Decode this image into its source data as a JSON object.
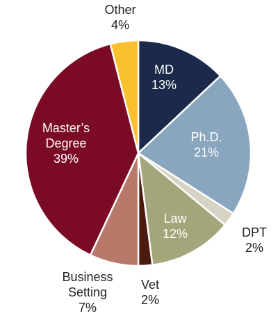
{
  "chart_data": {
    "type": "pie",
    "title": "",
    "start_angle_deg": 0,
    "direction": "clockwise",
    "slices": [
      {
        "label": "MD",
        "value": 13,
        "display": "13%",
        "color": "#1b2a4a"
      },
      {
        "label": "Ph.D.",
        "value": 21,
        "display": "21%",
        "color": "#8aa6bf"
      },
      {
        "label": "DPT",
        "value": 2,
        "display": "2%",
        "color": "#d6d2c4"
      },
      {
        "label": "Law",
        "value": 12,
        "display": "12%",
        "color": "#a3a57a"
      },
      {
        "label": "Vet",
        "value": 2,
        "display": "2%",
        "color": "#4a1a0e"
      },
      {
        "label": "Business\nSetting",
        "value": 7,
        "display": "7%",
        "color": "#b8786a"
      },
      {
        "label": "Master’s\nDegree",
        "value": 39,
        "display": "39%",
        "color": "#7a0a26"
      },
      {
        "label": "Other",
        "value": 4,
        "display": "4%",
        "color": "#fbc02d"
      }
    ]
  }
}
